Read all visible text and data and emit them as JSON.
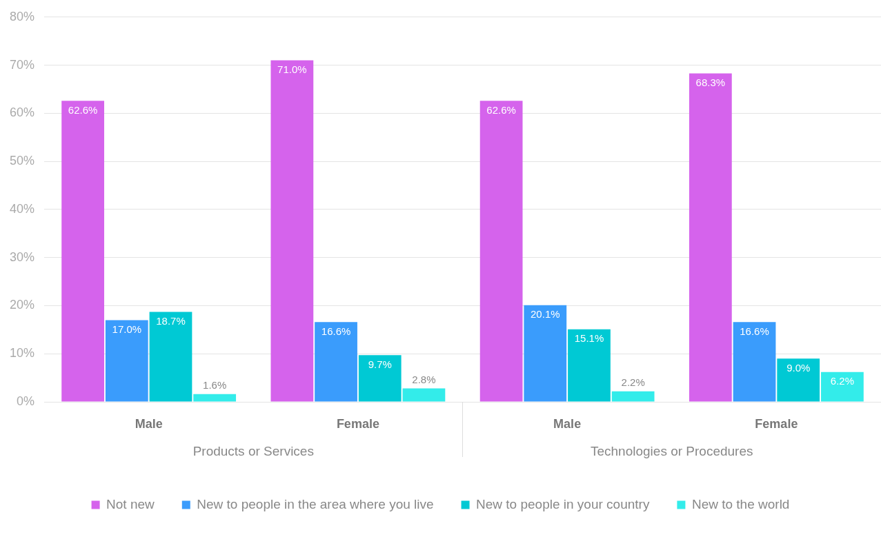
{
  "chart_data": {
    "type": "bar",
    "categories": [
      "Male",
      "Female",
      "Male",
      "Female"
    ],
    "annotations": [
      "Products or Services",
      "Technologies or Procedures"
    ],
    "series": [
      {
        "name": "Not new",
        "color": "#d563ec",
        "values": [
          62.6,
          71.0,
          62.6,
          68.3
        ],
        "value_labels": [
          "62.6%",
          "71.0%",
          "62.6%",
          "68.3%"
        ]
      },
      {
        "name": "New to people in the area where you live",
        "color": "#3a9cfc",
        "values": [
          17.0,
          16.6,
          20.1,
          16.6
        ],
        "value_labels": [
          "17.0%",
          "16.6%",
          "20.1%",
          "16.6%"
        ]
      },
      {
        "name": "New to people in your country",
        "color": "#00c9d4",
        "values": [
          18.7,
          9.7,
          15.1,
          9.0
        ],
        "value_labels": [
          "18.7%",
          "9.7%",
          "15.1%",
          "9.0%"
        ]
      },
      {
        "name": "New to the world",
        "color": "#33ecea",
        "values": [
          1.6,
          2.8,
          2.2,
          6.2
        ],
        "value_labels": [
          "1.6%",
          "2.8%",
          "2.2%",
          "6.2%"
        ]
      }
    ],
    "ylim": [
      0,
      80
    ],
    "yticks": [
      {
        "value": 0,
        "label": "0%"
      },
      {
        "value": 10,
        "label": "10%"
      },
      {
        "value": 20,
        "label": "20%"
      },
      {
        "value": 30,
        "label": "30%"
      },
      {
        "value": 40,
        "label": "40%"
      },
      {
        "value": 50,
        "label": "50%"
      },
      {
        "value": 60,
        "label": "60%"
      },
      {
        "value": 70,
        "label": "70%"
      },
      {
        "value": 80,
        "label": "80%"
      }
    ],
    "grid": "y",
    "legend": "bottom"
  }
}
